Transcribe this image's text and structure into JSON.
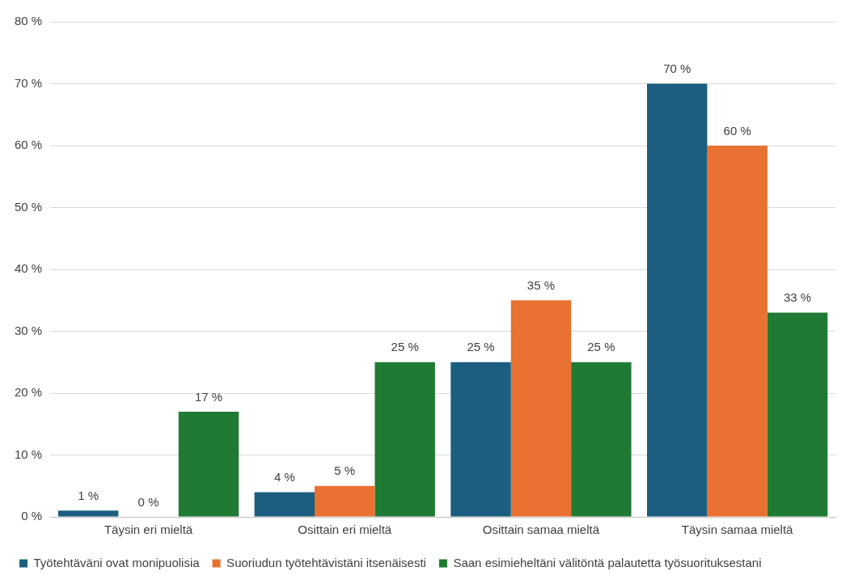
{
  "chart_data": {
    "type": "bar",
    "categories": [
      "Täysin eri mieltä",
      "Osittain eri mieltä",
      "Osittain samaa mieltä",
      "Täysin samaa mieltä"
    ],
    "series": [
      {
        "name": "Työtehtäväni ovat monipuolisia",
        "color": "#1b5e80",
        "values": [
          1,
          4,
          25,
          70
        ],
        "value_labels": [
          "1 %",
          "4 %",
          "25 %",
          "70 %"
        ]
      },
      {
        "name": "Suoriudun työtehtävistäni itsenäisesti",
        "color": "#e97132",
        "values": [
          0,
          5,
          35,
          60
        ],
        "value_labels": [
          "0 %",
          "5 %",
          "35 %",
          "60 %"
        ]
      },
      {
        "name": "Saan esimieheltäni välitöntä palautetta työsuorituksestani",
        "color": "#1f7a33",
        "values": [
          17,
          25,
          25,
          33
        ],
        "value_labels": [
          "17 %",
          "25 %",
          "25 %",
          "33 %"
        ]
      }
    ],
    "ylim": [
      0,
      80
    ],
    "yticks": [
      {
        "value": 0,
        "label": "0 %"
      },
      {
        "value": 10,
        "label": "10 %"
      },
      {
        "value": 20,
        "label": "20 %"
      },
      {
        "value": 30,
        "label": "30 %"
      },
      {
        "value": 40,
        "label": "40 %"
      },
      {
        "value": 50,
        "label": "50 %"
      },
      {
        "value": 60,
        "label": "60 %"
      },
      {
        "value": 70,
        "label": "70 %"
      },
      {
        "value": 80,
        "label": "80 %"
      }
    ],
    "grid": "y",
    "legend": "bottom"
  }
}
